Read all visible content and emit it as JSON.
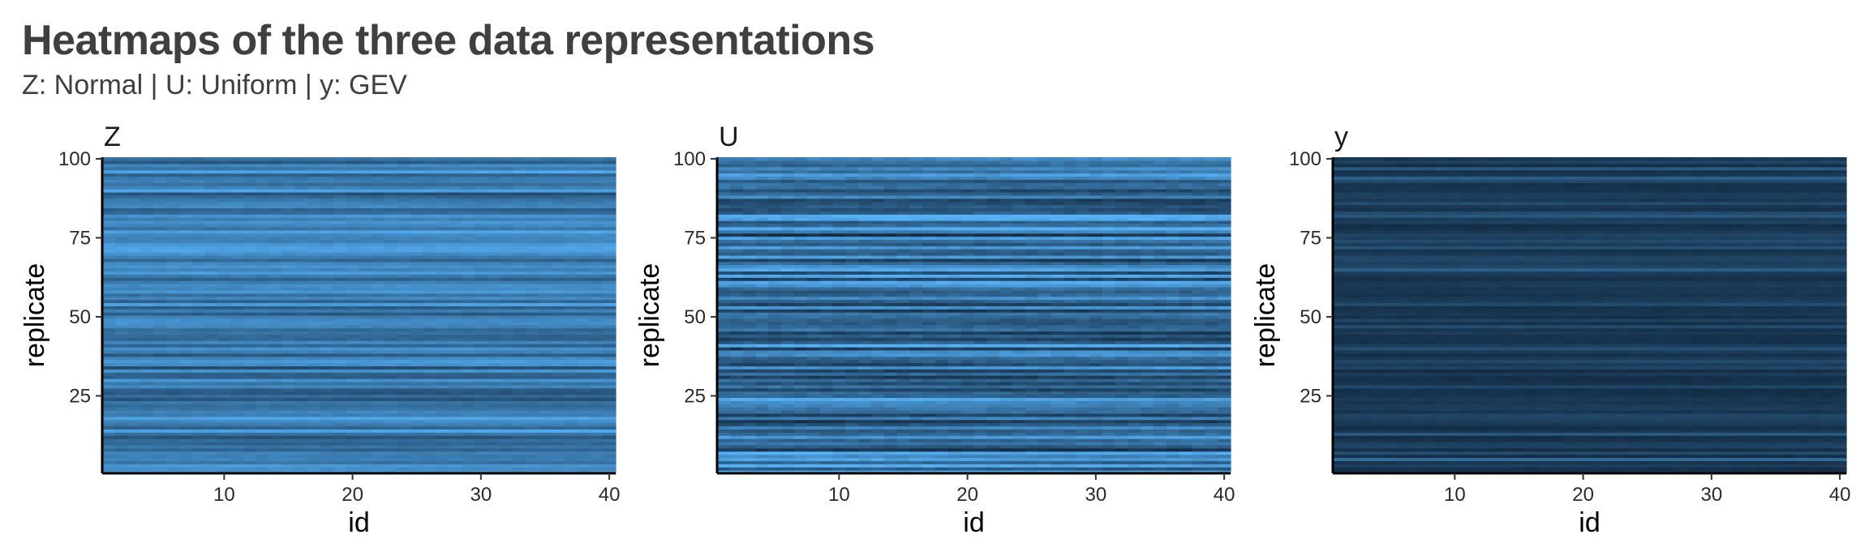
{
  "title": "Heatmaps of the three data representations",
  "subtitle": "Z: Normal | U: Uniform | y: GEV",
  "colors": {
    "low": "#132B43",
    "high": "#56B1F7"
  },
  "chart_data": [
    {
      "type": "heatmap",
      "facet": "Z",
      "xlabel": "id",
      "ylabel": "replicate",
      "x_range": [
        1,
        40
      ],
      "y_range": [
        1,
        100
      ],
      "xticks": [
        10,
        20,
        30,
        40
      ],
      "yticks": [
        25,
        50,
        75,
        100
      ],
      "value_range": [
        0,
        1
      ],
      "mean_level": 0.58,
      "row_spread": 0.22,
      "row_levels": [
        0.79,
        0.71,
        0.8,
        0.53,
        0.64,
        0.61,
        0.66,
        0.43,
        0.56,
        0.43,
        0.5,
        0.31,
        0.53,
        0.9,
        0.44,
        0.6,
        0.71,
        0.89,
        0.61,
        0.66,
        0.53,
        0.48,
        0.55,
        0.3,
        0.47,
        0.32,
        0.37,
        0.69,
        0.55,
        0.78,
        0.4,
        0.42,
        0.78,
        0.28,
        0.75,
        0.82,
        0.68,
        0.35,
        0.63,
        0.76,
        0.42,
        0.68,
        0.43,
        0.44,
        0.52,
        0.46,
        0.67,
        0.74,
        0.73,
        0.65,
        0.37,
        0.63,
        0.39,
        0.86,
        0.44,
        0.7,
        0.53,
        0.8,
        0.7,
        0.74,
        0.61,
        0.39,
        0.58,
        0.81,
        0.65,
        0.76,
        0.68,
        0.44,
        0.61,
        0.75,
        0.88,
        0.89,
        0.81,
        0.65,
        0.67,
        0.71,
        0.88,
        0.55,
        0.68,
        0.77,
        0.62,
        0.78,
        0.47,
        0.4,
        0.69,
        0.65,
        0.57,
        0.45,
        0.28,
        0.89,
        0.65,
        0.51,
        0.63,
        0.59,
        0.41,
        0.9,
        0.58,
        0.7,
        0.35,
        0.53
      ]
    },
    {
      "type": "heatmap",
      "facet": "U",
      "xlabel": "id",
      "ylabel": "replicate",
      "x_range": [
        1,
        40
      ],
      "y_range": [
        1,
        100
      ],
      "xticks": [
        10,
        20,
        30,
        40
      ],
      "yticks": [
        25,
        50,
        75,
        100
      ],
      "value_range": [
        0,
        1
      ],
      "mean_level": 0.6,
      "row_spread": 0.38,
      "row_levels": [
        0.94,
        0.32,
        0.94,
        0.44,
        0.87,
        0.69,
        0.95,
        0.06,
        0.35,
        0.57,
        0.44,
        0.83,
        0.47,
        0.38,
        0.69,
        0.34,
        0.11,
        0.62,
        0.15,
        0.48,
        0.53,
        0.64,
        0.7,
        0.9,
        0.41,
        0.44,
        0.19,
        0.51,
        0.25,
        0.47,
        0.16,
        0.51,
        0.21,
        0.79,
        0.23,
        0.37,
        0.44,
        0.76,
        0.72,
        0.13,
        0.96,
        0.36,
        0.16,
        0.37,
        0.13,
        0.53,
        0.43,
        0.35,
        0.37,
        0.5,
        0.58,
        0.16,
        0.8,
        0.2,
        0.41,
        0.75,
        0.44,
        0.36,
        0.49,
        0.8,
        0.93,
        0.18,
        0.91,
        0.23,
        0.91,
        0.76,
        0.45,
        0.15,
        0.83,
        0.38,
        0.42,
        0.83,
        0.36,
        0.53,
        0.88,
        0.08,
        0.65,
        0.97,
        0.49,
        0.36,
        0.92,
        0.97,
        0.34,
        0.25,
        0.33,
        0.23,
        0.17,
        0.67,
        0.42,
        0.24,
        0.52,
        0.51,
        0.34,
        0.7,
        0.88,
        0.56,
        0.71,
        0.47,
        0.53,
        0.68
      ]
    },
    {
      "type": "heatmap",
      "facet": "y",
      "xlabel": "id",
      "ylabel": "replicate",
      "x_range": [
        1,
        40
      ],
      "y_range": [
        1,
        100
      ],
      "xticks": [
        10,
        20,
        30,
        40
      ],
      "yticks": [
        25,
        50,
        75,
        100
      ],
      "value_range": [
        0,
        1
      ],
      "mean_level": 0.14,
      "row_spread": 0.1,
      "row_levels": [
        0.08,
        0.04,
        0.14,
        0.07,
        0.47,
        0.03,
        0.25,
        0.03,
        0.18,
        0.16,
        0.06,
        0.03,
        0.34,
        0.08,
        0.02,
        0.1,
        0.14,
        0.18,
        0.2,
        0.07,
        0.13,
        0.11,
        0.07,
        0.1,
        0.06,
        0.04,
        0.04,
        0.21,
        0.06,
        0.04,
        0.05,
        0.12,
        0.02,
        0.19,
        0.13,
        0.23,
        0.11,
        0.03,
        0.11,
        0.26,
        0.14,
        0.04,
        0.05,
        0.05,
        0.11,
        0.06,
        0.25,
        0.05,
        0.18,
        0.04,
        0.1,
        0.07,
        0.05,
        0.24,
        0.14,
        0.1,
        0.06,
        0.09,
        0.08,
        0.12,
        0.1,
        0.03,
        0.08,
        0.13,
        0.37,
        0.2,
        0.14,
        0.19,
        0.19,
        0.1,
        0.06,
        0.28,
        0.13,
        0.24,
        0.16,
        0.19,
        0.11,
        0.05,
        0.02,
        0.16,
        0.12,
        0.32,
        0.23,
        0.05,
        0.09,
        0.24,
        0.1,
        0.14,
        0.14,
        0.06,
        0.06,
        0.05,
        0.23,
        0.39,
        0.1,
        0.05,
        0.34,
        0.03,
        0.18,
        0.09
      ]
    }
  ]
}
